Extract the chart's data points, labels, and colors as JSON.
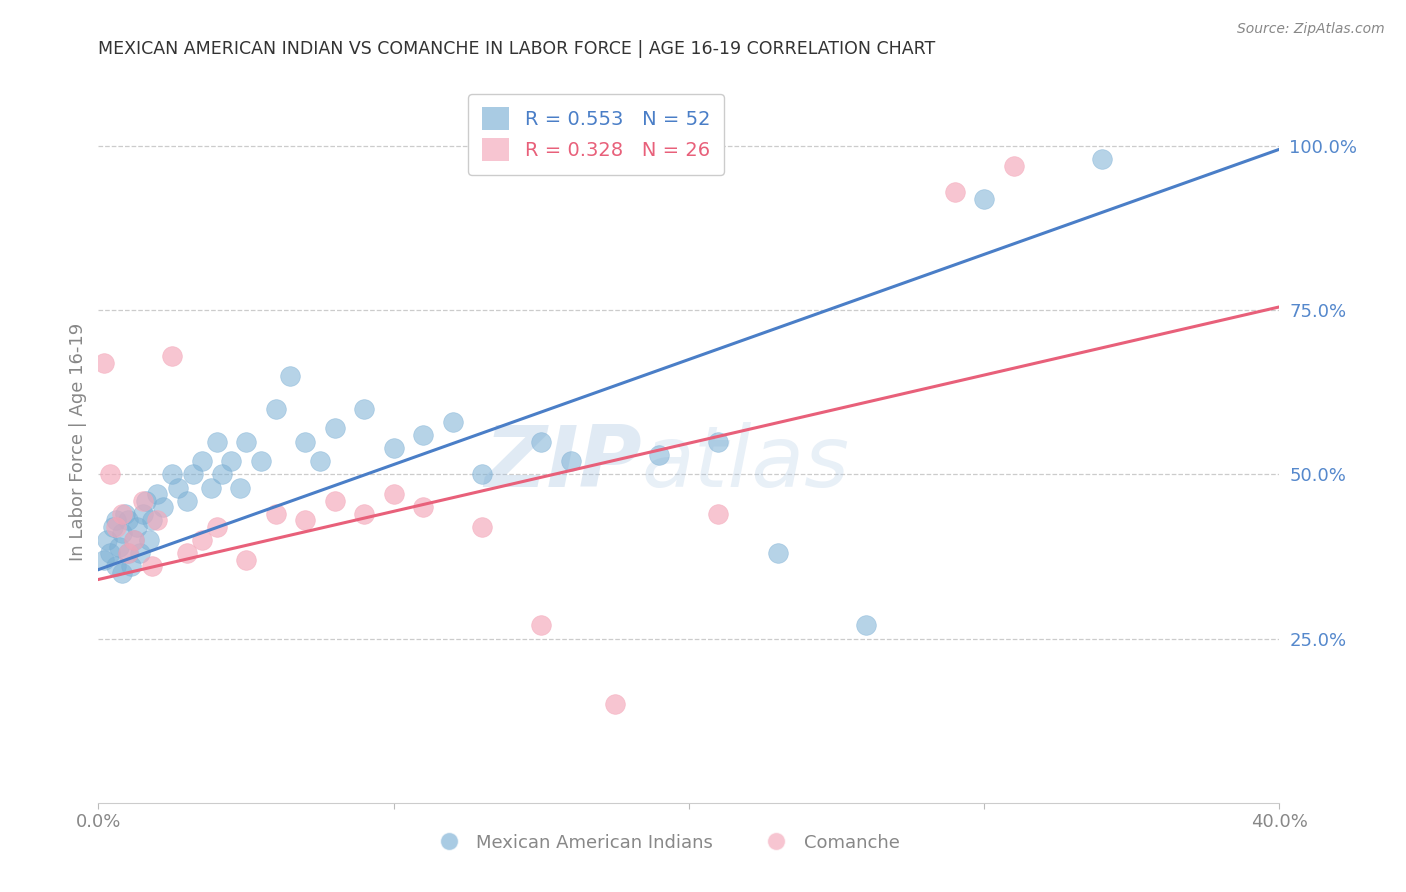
{
  "title": "MEXICAN AMERICAN INDIAN VS COMANCHE IN LABOR FORCE | AGE 16-19 CORRELATION CHART",
  "source": "Source: ZipAtlas.com",
  "ylabel": "In Labor Force | Age 16-19",
  "xlim": [
    0.0,
    0.4
  ],
  "ylim": [
    0.0,
    1.1
  ],
  "yticks_right": [
    0.25,
    0.5,
    0.75,
    1.0
  ],
  "ytick_labels_right": [
    "25.0%",
    "50.0%",
    "75.0%",
    "100.0%"
  ],
  "blue_R": 0.553,
  "blue_N": 52,
  "pink_R": 0.328,
  "pink_N": 26,
  "blue_color": "#7BAFD4",
  "pink_color": "#F4A7B9",
  "blue_line_color": "#4A7EC7",
  "pink_line_color": "#E8607A",
  "legend_label_blue": "Mexican American Indians",
  "legend_label_pink": "Comanche",
  "blue_scatter_x": [
    0.002,
    0.003,
    0.004,
    0.005,
    0.006,
    0.006,
    0.007,
    0.008,
    0.008,
    0.009,
    0.01,
    0.01,
    0.011,
    0.012,
    0.013,
    0.014,
    0.015,
    0.016,
    0.017,
    0.018,
    0.02,
    0.022,
    0.025,
    0.027,
    0.03,
    0.032,
    0.035,
    0.038,
    0.04,
    0.042,
    0.045,
    0.048,
    0.05,
    0.055,
    0.06,
    0.065,
    0.07,
    0.075,
    0.08,
    0.09,
    0.1,
    0.11,
    0.12,
    0.13,
    0.15,
    0.16,
    0.19,
    0.21,
    0.23,
    0.26,
    0.3,
    0.34
  ],
  "blue_scatter_y": [
    0.37,
    0.4,
    0.38,
    0.42,
    0.36,
    0.43,
    0.39,
    0.35,
    0.41,
    0.44,
    0.38,
    0.43,
    0.36,
    0.4,
    0.42,
    0.38,
    0.44,
    0.46,
    0.4,
    0.43,
    0.47,
    0.45,
    0.5,
    0.48,
    0.46,
    0.5,
    0.52,
    0.48,
    0.55,
    0.5,
    0.52,
    0.48,
    0.55,
    0.52,
    0.6,
    0.65,
    0.55,
    0.52,
    0.57,
    0.6,
    0.54,
    0.56,
    0.58,
    0.5,
    0.55,
    0.52,
    0.53,
    0.55,
    0.38,
    0.27,
    0.92,
    0.98
  ],
  "pink_scatter_x": [
    0.002,
    0.004,
    0.006,
    0.008,
    0.01,
    0.012,
    0.015,
    0.018,
    0.02,
    0.025,
    0.03,
    0.035,
    0.04,
    0.05,
    0.06,
    0.07,
    0.08,
    0.09,
    0.1,
    0.11,
    0.13,
    0.15,
    0.175,
    0.21,
    0.29,
    0.31
  ],
  "pink_scatter_y": [
    0.67,
    0.5,
    0.42,
    0.44,
    0.38,
    0.4,
    0.46,
    0.36,
    0.43,
    0.68,
    0.38,
    0.4,
    0.42,
    0.37,
    0.44,
    0.43,
    0.46,
    0.44,
    0.47,
    0.45,
    0.42,
    0.27,
    0.15,
    0.44,
    0.93,
    0.97
  ],
  "blue_line_y0": 0.355,
  "blue_line_y1": 0.995,
  "pink_line_y0": 0.34,
  "pink_line_y1": 0.755,
  "watermark_zip": "ZIP",
  "watermark_atlas": "atlas",
  "background_color": "#FFFFFF",
  "grid_color": "#CCCCCC",
  "title_color": "#333333",
  "axis_label_color": "#888888",
  "right_tick_color": "#5588CC",
  "figsize": [
    14.06,
    8.92
  ],
  "dpi": 100
}
